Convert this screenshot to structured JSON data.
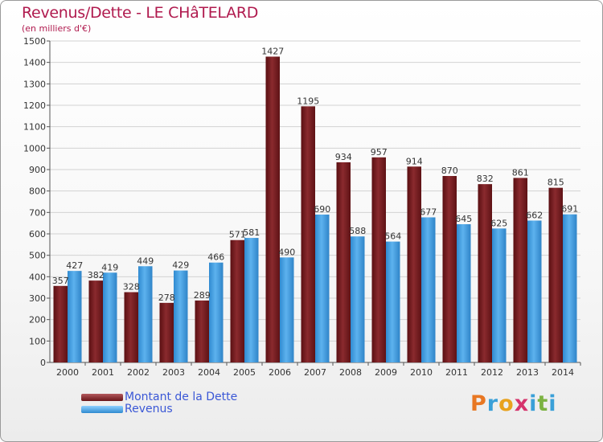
{
  "header": {
    "title": "Revenus/Dette - LE CHâTELARD",
    "subtitle": "(en milliers d'€)"
  },
  "legend": {
    "debt_label": "Montant de la Dette",
    "revenue_label": "Revenus"
  },
  "logo": {
    "letters": [
      "P",
      "r",
      "o",
      "x",
      "i",
      "t",
      "i"
    ],
    "colors": [
      "#e87722",
      "#3aa0d8",
      "#e8a21e",
      "#d6336c",
      "#3aa0d8",
      "#7cb342",
      "#3aa0d8"
    ]
  },
  "colors": {
    "debt": "#7a1a1e",
    "revenue": "#3f9de0",
    "title": "#b01a4e",
    "legend_text": "#3a57d6"
  },
  "chart_data": {
    "type": "bar",
    "title": "Revenus/Dette - LE CHâTELARD",
    "ylabel": "(en milliers d'€)",
    "xlabel": "",
    "ylim": [
      0,
      1500
    ],
    "yticks": [
      0,
      100,
      200,
      300,
      400,
      500,
      600,
      700,
      800,
      900,
      1000,
      1100,
      1200,
      1300,
      1400,
      1500
    ],
    "grid": true,
    "categories": [
      "2000",
      "2001",
      "2002",
      "2003",
      "2004",
      "2005",
      "2006",
      "2007",
      "2008",
      "2009",
      "2010",
      "2011",
      "2012",
      "2013",
      "2014"
    ],
    "series": [
      {
        "name": "Montant de la Dette",
        "values": [
          357,
          382,
          328,
          278,
          289,
          571,
          1427,
          1195,
          934,
          957,
          914,
          870,
          832,
          861,
          815
        ]
      },
      {
        "name": "Revenus",
        "values": [
          427,
          419,
          449,
          429,
          466,
          581,
          490,
          690,
          588,
          564,
          677,
          645,
          625,
          662,
          691
        ]
      }
    ]
  }
}
